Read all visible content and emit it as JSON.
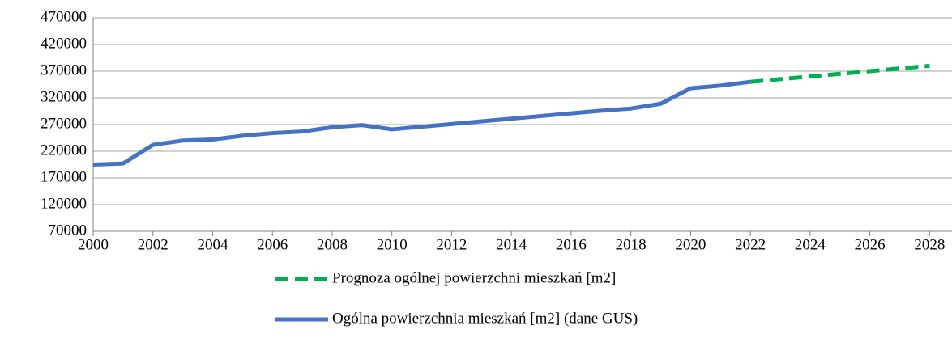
{
  "chart_data": {
    "type": "line",
    "series": [
      {
        "name": "Prognoza ogólnej powierzchni mieszkań [m2]",
        "color": "#00b050",
        "dashed": true,
        "x": [
          2022,
          2023,
          2024,
          2025,
          2026,
          2027,
          2028
        ],
        "values": [
          350000,
          355000,
          360000,
          365000,
          370000,
          375000,
          380000
        ]
      },
      {
        "name": "Ogólna powierzchnia mieszkań [m2] (dane GUS)",
        "color": "#4472c4",
        "dashed": false,
        "x": [
          2000,
          2001,
          2002,
          2003,
          2004,
          2005,
          2006,
          2007,
          2008,
          2009,
          2010,
          2011,
          2012,
          2013,
          2014,
          2015,
          2016,
          2017,
          2018,
          2019,
          2020,
          2021,
          2022
        ],
        "values": [
          195000,
          197000,
          232000,
          240000,
          242000,
          249000,
          254000,
          257000,
          265000,
          269000,
          261000,
          266000,
          271000,
          276000,
          281000,
          286000,
          291000,
          296000,
          300000,
          309000,
          338000,
          343000,
          350000
        ]
      }
    ],
    "xlim": [
      2000,
      2028.75
    ],
    "xticks": [
      2000,
      2002,
      2004,
      2006,
      2008,
      2010,
      2012,
      2014,
      2016,
      2018,
      2020,
      2022,
      2024,
      2026,
      2028
    ],
    "ylim": [
      70000,
      470000
    ],
    "yticks": [
      70000,
      120000,
      170000,
      220000,
      270000,
      320000,
      370000,
      420000,
      470000
    ],
    "grid": true,
    "legend": "bottom"
  }
}
